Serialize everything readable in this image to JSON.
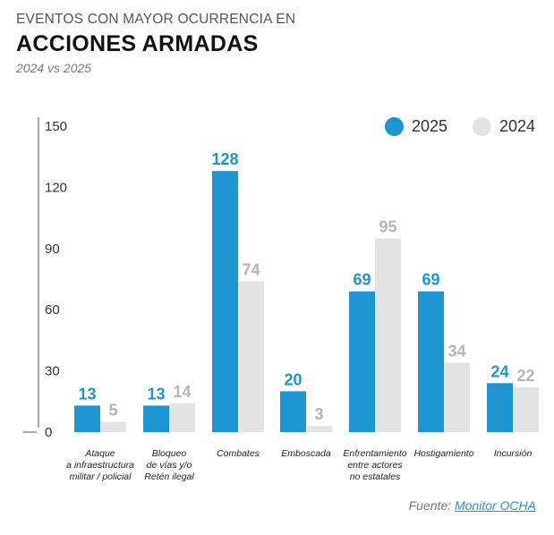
{
  "header": {
    "kicker": "EVENTOS CON MAYOR OCURRENCIA EN",
    "title": "ACCIONES ARMADAS",
    "subtitle": "2024 vs 2025"
  },
  "legend": [
    {
      "name": "2025",
      "color": "#1e95d3"
    },
    {
      "name": "2024",
      "color": "#e3e3e3"
    }
  ],
  "source": {
    "label": "Fuente:",
    "link_text": "Monitor OCHA"
  },
  "chart_data": {
    "type": "bar",
    "title": "ACCIONES ARMADAS",
    "subtitle": "2024 vs 2025",
    "categories": [
      [
        "Ataque",
        "a infraestructura",
        "militar / policial"
      ],
      [
        "Bloqueo",
        "de vías y/o",
        "Retén ilegal"
      ],
      [
        "Combates"
      ],
      [
        "Emboscada"
      ],
      [
        "Enfrentamiento",
        "entre actores",
        "no estatales"
      ],
      [
        "Hostigamiento"
      ],
      [
        "Incursión"
      ]
    ],
    "series": [
      {
        "name": "2025",
        "color": "#1e95d3",
        "label_color": "#1e95d3",
        "values": [
          13,
          13,
          128,
          20,
          69,
          69,
          24
        ]
      },
      {
        "name": "2024",
        "color": "#e3e3e3",
        "label_color": "#b5b5b5",
        "values": [
          5,
          14,
          74,
          3,
          95,
          34,
          22
        ]
      }
    ],
    "ylim": [
      0,
      150
    ],
    "yticks": [
      0,
      30,
      60,
      90,
      120,
      150
    ],
    "legend_position": "top-right",
    "grid": false
  }
}
